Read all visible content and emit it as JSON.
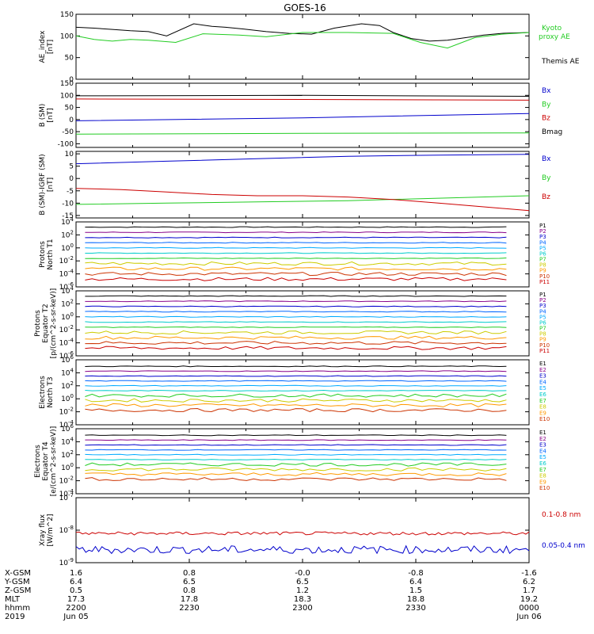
{
  "title": "GOES-16",
  "colors": {
    "black": "#000000",
    "blue": "#0000cc",
    "green": "#22cc22",
    "red": "#cc0000"
  },
  "chart_data": [
    {
      "type": "line",
      "ylabel": [
        "AE_index",
        "[nT]"
      ],
      "yticks": [
        "150",
        "100",
        "50",
        "0"
      ],
      "ylim": [
        0,
        150
      ],
      "legend": [
        {
          "name": "Kyoto",
          "color": "green"
        },
        {
          "name": "proxy AE",
          "color": "green"
        },
        {
          "name": "Themis AE",
          "color": "black"
        }
      ],
      "series": [
        {
          "name": "Themis AE",
          "color": "black",
          "x": [
            0,
            0.04,
            0.08,
            0.12,
            0.16,
            0.2,
            0.26,
            0.3,
            0.33,
            0.37,
            0.42,
            0.47,
            0.52,
            0.57,
            0.63,
            0.67,
            0.7,
            0.74,
            0.78,
            0.82,
            0.86,
            0.9,
            0.94,
            1
          ],
          "y": [
            120,
            118,
            115,
            112,
            110,
            100,
            128,
            122,
            120,
            116,
            110,
            106,
            104,
            118,
            128,
            124,
            108,
            94,
            88,
            90,
            96,
            102,
            106,
            108
          ]
        },
        {
          "name": "Kyoto proxy AE",
          "color": "green",
          "x": [
            0,
            0.04,
            0.08,
            0.12,
            0.16,
            0.22,
            0.28,
            0.36,
            0.42,
            0.5,
            0.6,
            0.7,
            0.76,
            0.82,
            0.88,
            0.94,
            1
          ],
          "y": [
            100,
            92,
            88,
            92,
            90,
            85,
            105,
            102,
            98,
            108,
            108,
            106,
            85,
            72,
            96,
            104,
            108
          ]
        }
      ]
    },
    {
      "type": "line",
      "ylabel": [
        "B (SM)",
        "[nT]"
      ],
      "yticks": [
        "150",
        "100",
        "50",
        "0",
        "-50",
        "-100"
      ],
      "ylim": [
        -115,
        150
      ],
      "legend": [
        {
          "name": "Bx",
          "color": "blue"
        },
        {
          "name": "By",
          "color": "green"
        },
        {
          "name": "Bz",
          "color": "red"
        },
        {
          "name": "Bmag",
          "color": "black"
        }
      ],
      "series": [
        {
          "name": "Bmag",
          "color": "black",
          "x": [
            0,
            0.5,
            1
          ],
          "y": [
            98,
            100,
            96
          ]
        },
        {
          "name": "Bz",
          "color": "red",
          "x": [
            0,
            0.5,
            1
          ],
          "y": [
            85,
            83,
            80
          ]
        },
        {
          "name": "Bx",
          "color": "blue",
          "x": [
            0,
            0.5,
            1
          ],
          "y": [
            -5,
            7,
            25
          ]
        },
        {
          "name": "By",
          "color": "green",
          "x": [
            0,
            0.5,
            1
          ],
          "y": [
            -60,
            -57,
            -55
          ]
        }
      ]
    },
    {
      "type": "line",
      "ylabel": [
        "B (SM)-IGRF (SM)",
        "[nT]"
      ],
      "yticks": [
        "10",
        "5",
        "0",
        "-5",
        "-10",
        "-15"
      ],
      "ylim": [
        -16,
        11
      ],
      "legend": [
        {
          "name": "Bx",
          "color": "blue"
        },
        {
          "name": "By",
          "color": "green"
        },
        {
          "name": "Bz",
          "color": "red"
        }
      ],
      "series": [
        {
          "name": "Bx",
          "color": "blue",
          "x": [
            0,
            0.2,
            0.4,
            0.6,
            0.8,
            1
          ],
          "y": [
            6,
            7,
            8,
            9,
            9.5,
            9.8
          ]
        },
        {
          "name": "By",
          "color": "green",
          "x": [
            0,
            0.2,
            0.4,
            0.6,
            0.8,
            1
          ],
          "y": [
            -10.5,
            -10,
            -9.5,
            -9,
            -8,
            -7
          ]
        },
        {
          "name": "Bz",
          "color": "red",
          "x": [
            0,
            0.1,
            0.2,
            0.3,
            0.4,
            0.5,
            0.6,
            0.7,
            0.8,
            0.9,
            1
          ],
          "y": [
            -4,
            -4.5,
            -5.5,
            -6.5,
            -7,
            -7,
            -7.5,
            -8.5,
            -10,
            -11.5,
            -13
          ]
        }
      ]
    },
    {
      "type": "line",
      "ylabel": [
        "Protons",
        "North T1"
      ],
      "log": true,
      "yticks": [
        "10^4",
        "10^2",
        "10^0",
        "10^-2",
        "10^-4",
        "10^-6"
      ],
      "ylim": [
        -6,
        4
      ],
      "legend_channels": [
        "P1",
        "P2",
        "P3",
        "P4",
        "P5",
        "P6",
        "P7",
        "P8",
        "P9",
        "P10",
        "P11"
      ]
    },
    {
      "type": "line",
      "ylabel": [
        "Protons",
        "Equator T2",
        "[p/(cm^2-s-sr-keV)]"
      ],
      "log": true,
      "yticks": [
        "10^4",
        "10^2",
        "10^0",
        "10^-2",
        "10^-4",
        "10^-6"
      ],
      "ylim": [
        -6,
        4
      ],
      "legend_channels": [
        "P1",
        "P2",
        "P3",
        "P4",
        "P5",
        "P6",
        "P7",
        "P8",
        "P9",
        "P10",
        "P11"
      ]
    },
    {
      "type": "line",
      "ylabel": [
        "Electrons",
        "North T3"
      ],
      "log": true,
      "yticks": [
        "10^6",
        "10^4",
        "10^2",
        "10^0",
        "10^-2",
        "10^-4"
      ],
      "ylim": [
        -4,
        6
      ],
      "legend_channels": [
        "E1",
        "E2",
        "E3",
        "E4",
        "E5",
        "E6",
        "E7",
        "E8",
        "E9",
        "E10"
      ]
    },
    {
      "type": "line",
      "ylabel": [
        "Electrons",
        "Equator T4",
        "[e/(cm^2-s-sr-keV)]"
      ],
      "log": true,
      "yticks": [
        "10^6",
        "10^4",
        "10^2",
        "10^0",
        "10^-2",
        "10^-4"
      ],
      "ylim": [
        -4,
        6
      ],
      "legend_channels": [
        "E1",
        "E2",
        "E3",
        "E4",
        "E5",
        "E6",
        "E7",
        "E8",
        "E9",
        "E10"
      ]
    },
    {
      "type": "line",
      "ylabel": [
        "Xray flux",
        "[W/m^2]"
      ],
      "log": true,
      "yticks": [
        "10^-7",
        "10^-8",
        "10^-9"
      ],
      "ylim": [
        -9,
        -7
      ],
      "legend": [
        {
          "name": "0.1-0.8 nm",
          "color": "red"
        },
        {
          "name": "0.05-0.4 nm",
          "color": "blue"
        }
      ],
      "series": [
        {
          "name": "0.1-0.8 nm",
          "color": "red",
          "level": -8.1
        },
        {
          "name": "0.05-0.4 nm",
          "color": "blue",
          "level": -8.6
        }
      ]
    }
  ],
  "xaxis": {
    "rows": [
      {
        "label": "X-GSM",
        "vals": [
          "1.6",
          "0.8",
          "-0.0",
          "-0.8",
          "-1.6"
        ]
      },
      {
        "label": "Y-GSM",
        "vals": [
          "6.4",
          "6.5",
          "6.5",
          "6.4",
          "6.2"
        ]
      },
      {
        "label": "Z-GSM",
        "vals": [
          "0.5",
          "0.8",
          "1.2",
          "1.5",
          "1.7"
        ]
      },
      {
        "label": "MLT",
        "vals": [
          "17.3",
          "17.8",
          "18.3",
          "18.8",
          "19.2"
        ]
      },
      {
        "label": "hhmm",
        "vals": [
          "2200",
          "2230",
          "2300",
          "2330",
          "0000"
        ]
      },
      {
        "label": "2019",
        "vals": [
          "Jun 05",
          "",
          "",
          "",
          "Jun 06"
        ]
      }
    ]
  }
}
